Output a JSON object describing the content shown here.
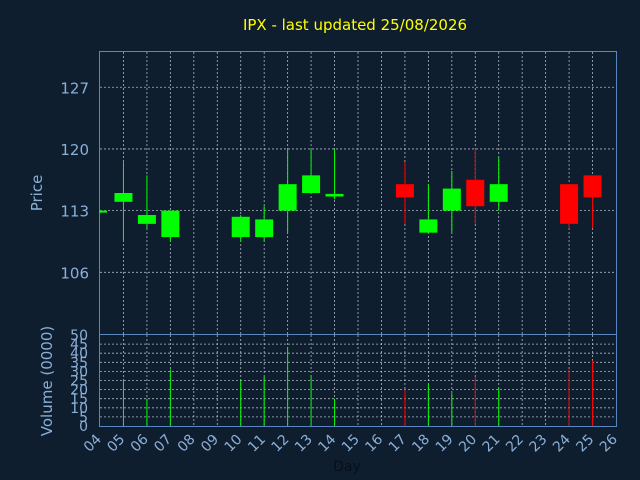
{
  "chart_data": {
    "type": "candlestick",
    "title": "IPX - last updated 25/08/2026",
    "xlabel": "Day",
    "price_panel": {
      "ylabel": "Price",
      "ylim": [
        99,
        131
      ],
      "yticks": [
        106,
        113,
        120,
        127
      ]
    },
    "volume_panel": {
      "ylabel": "Volume (0000)",
      "ylim": [
        0,
        50
      ],
      "yticks": [
        0,
        5,
        10,
        15,
        20,
        25,
        30,
        35,
        40,
        45,
        50
      ]
    },
    "xlim": [
      4,
      26
    ],
    "x_tick_labels": [
      "04",
      "05",
      "06",
      "07",
      "08",
      "09",
      "10",
      "11",
      "12",
      "13",
      "14",
      "15",
      "16",
      "17",
      "18",
      "19",
      "20",
      "21",
      "22",
      "23",
      "24",
      "25",
      "26"
    ],
    "colors": {
      "up": "#00ff00",
      "down": "#ff0000",
      "background": "#0f1e2f",
      "frame": "#5a86c0",
      "title": "#ffff00",
      "labels": "#8ab0d8"
    },
    "candles": [
      {
        "day": "04",
        "open": 112.8,
        "high": 113.1,
        "low": 112.7,
        "close": 113.0,
        "volume": 0
      },
      {
        "day": "05",
        "open": 114.0,
        "high": 118.5,
        "low": 109.5,
        "close": 115.0,
        "volume": 25
      },
      {
        "day": "06",
        "open": 111.5,
        "high": 117.0,
        "low": 111.0,
        "close": 112.5,
        "volume": 15
      },
      {
        "day": "07",
        "open": 110.0,
        "high": 113.0,
        "low": 109.5,
        "close": 113.0,
        "volume": 31
      },
      {
        "day": "10",
        "open": 110.0,
        "high": 112.5,
        "low": 109.5,
        "close": 112.3,
        "volume": 25
      },
      {
        "day": "11",
        "open": 110.0,
        "high": 113.5,
        "low": 109.5,
        "close": 112.0,
        "volume": 27
      },
      {
        "day": "12",
        "open": 113.0,
        "high": 120.0,
        "low": 110.5,
        "close": 116.0,
        "volume": 43
      },
      {
        "day": "13",
        "open": 115.0,
        "high": 120.0,
        "low": 115.0,
        "close": 117.0,
        "volume": 28
      },
      {
        "day": "14",
        "open": 114.6,
        "high": 120.0,
        "low": 114.3,
        "close": 114.9,
        "volume": 15
      },
      {
        "day": "17",
        "open": 116.0,
        "high": 118.5,
        "low": 111.5,
        "close": 114.5,
        "volume": 20
      },
      {
        "day": "18",
        "open": 110.5,
        "high": 116.0,
        "low": 110.5,
        "close": 112.0,
        "volume": 23
      },
      {
        "day": "19",
        "open": 113.0,
        "high": 117.5,
        "low": 110.5,
        "close": 115.5,
        "volume": 18
      },
      {
        "day": "20",
        "open": 116.5,
        "high": 120.0,
        "low": 111.5,
        "close": 113.5,
        "volume": 27
      },
      {
        "day": "21",
        "open": 114.0,
        "high": 119.0,
        "low": 113.0,
        "close": 116.0,
        "volume": 21
      },
      {
        "day": "24",
        "open": 116.0,
        "high": 116.0,
        "low": 111.0,
        "close": 111.5,
        "volume": 31
      },
      {
        "day": "25",
        "open": 117.0,
        "high": 117.0,
        "low": 111.0,
        "close": 114.5,
        "volume": 36
      }
    ]
  }
}
